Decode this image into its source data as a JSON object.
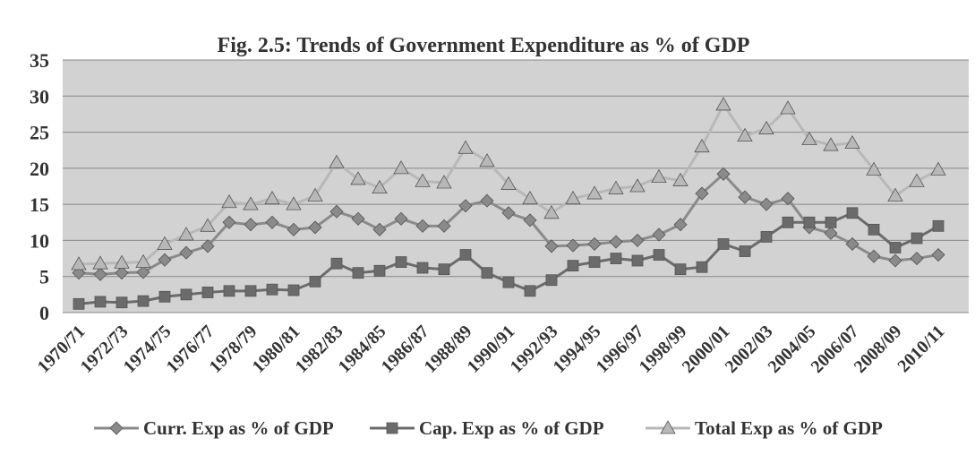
{
  "chart_data": {
    "type": "line",
    "title": "Fig. 2.5:  Trends of  Government Expenditure as % of GDP",
    "categories": [
      "1970/71",
      null,
      "1972/73",
      null,
      "1974/75",
      null,
      "1976/77",
      null,
      "1978/79",
      null,
      "1980/81",
      null,
      "1982/83",
      null,
      "1984/85",
      null,
      "1986/87",
      null,
      "1988/89",
      null,
      "1990/91",
      null,
      "1992/93",
      null,
      "1994/95",
      null,
      "1996/97",
      null,
      "1998/99",
      null,
      "2000/01",
      null,
      "2002/03",
      null,
      "2004/05",
      null,
      "2006/07",
      null,
      "2008/09",
      null,
      "2010/11"
    ],
    "series": [
      {
        "name": "Curr. Exp as % of GDP",
        "color": "#8a8a8a",
        "marker": "diamond",
        "values": [
          5.5,
          5.3,
          5.5,
          5.6,
          7.3,
          8.3,
          9.2,
          12.5,
          12.2,
          12.5,
          11.5,
          11.8,
          14,
          13,
          11.5,
          13,
          12,
          12,
          14.8,
          15.5,
          13.8,
          12.8,
          9.2,
          9.3,
          9.5,
          9.8,
          10,
          10.8,
          12.2,
          16.5,
          19.2,
          16,
          15,
          15.8,
          11.8,
          11,
          9.5,
          7.8,
          7.2,
          7.5,
          8
        ]
      },
      {
        "name": "Cap. Exp as % of GDP",
        "color": "#6b6b6b",
        "marker": "square",
        "values": [
          1.2,
          1.5,
          1.4,
          1.6,
          2.2,
          2.5,
          2.8,
          3,
          3,
          3.2,
          3.1,
          4.3,
          6.8,
          5.5,
          5.8,
          7,
          6.2,
          6,
          8,
          5.5,
          4.2,
          3,
          4.5,
          6.5,
          7,
          7.5,
          7.2,
          8,
          6,
          6.3,
          9.5,
          8.5,
          10.5,
          12.5,
          12.5,
          12.5,
          13.8,
          11.5,
          9,
          10.3,
          12
        ]
      },
      {
        "name": "Total Exp as % of GDP",
        "color": "#b8b8b8",
        "marker": "triangle",
        "values": [
          6.7,
          6.8,
          6.9,
          7,
          9.5,
          10.8,
          12,
          15.3,
          15,
          15.8,
          15,
          16.2,
          20.8,
          18.5,
          17.3,
          20,
          18.2,
          18,
          22.8,
          21,
          17.8,
          15.8,
          13.8,
          15.8,
          16.5,
          17.2,
          17.5,
          18.8,
          18.3,
          23,
          28.8,
          24.5,
          25.5,
          28.3,
          24,
          23.2,
          23.5,
          19.8,
          16.2,
          18.2,
          19.8
        ]
      }
    ],
    "ylim": [
      0,
      35
    ],
    "yticks": [
      0,
      5,
      10,
      15,
      20,
      25,
      30,
      35
    ],
    "grid": true,
    "legend": "bottom"
  }
}
